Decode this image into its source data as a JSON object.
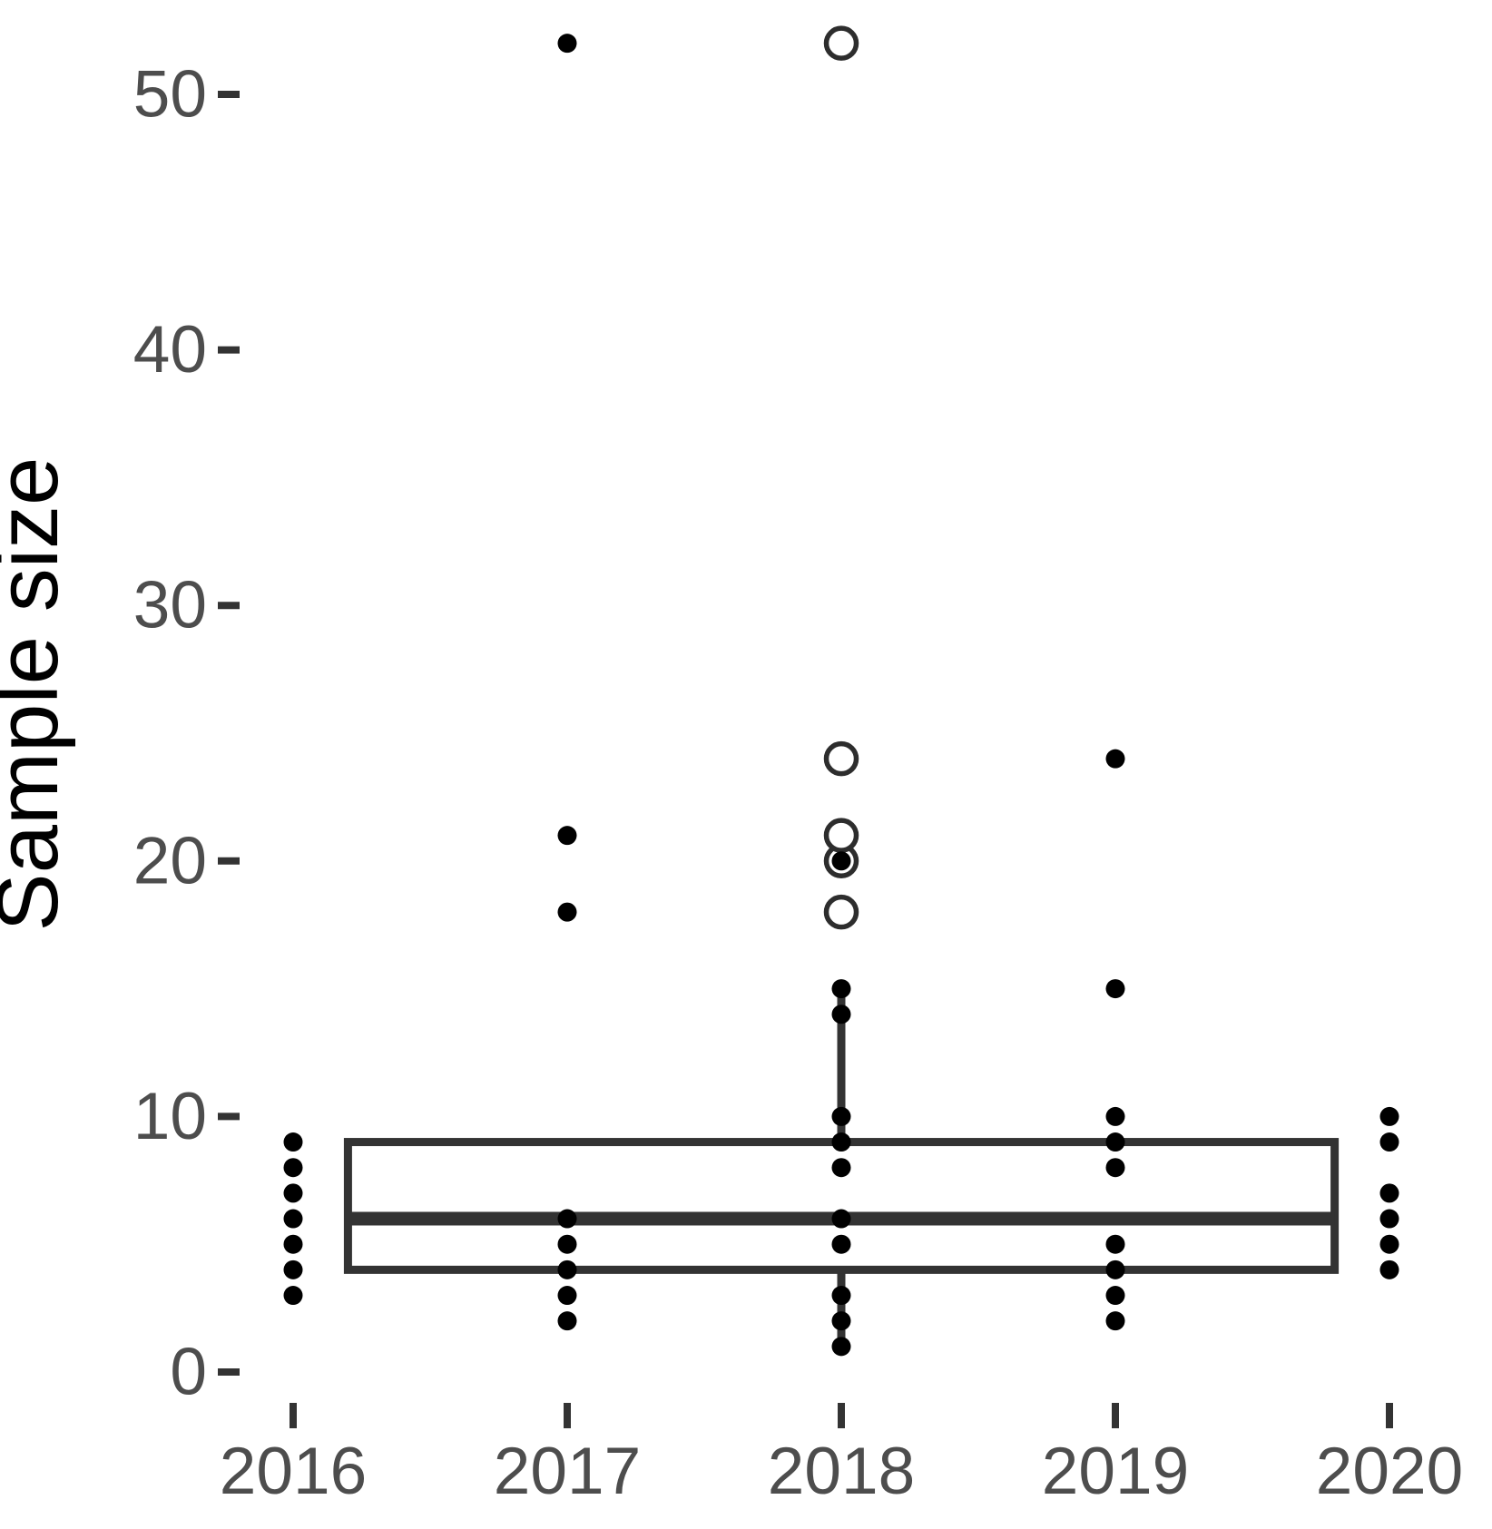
{
  "chart_data": {
    "type": "boxplot",
    "title": "",
    "xlabel": "",
    "ylabel": "Sample size",
    "x_tick_labels": [
      "2016",
      "2017",
      "2018",
      "2019",
      "2020"
    ],
    "x_years": [
      2016,
      2017,
      2018,
      2019,
      2020
    ],
    "y_ticks": [
      0,
      10,
      20,
      30,
      40,
      50
    ],
    "ylim": [
      0,
      53
    ],
    "grid": false,
    "legend_position": "none",
    "points_by_year": {
      "2016": [
        3,
        4,
        5,
        6,
        7,
        8,
        9
      ],
      "2017": [
        2,
        3,
        4,
        5,
        6,
        18,
        21,
        52
      ],
      "2018": [
        1,
        2,
        3,
        5,
        6,
        8,
        9,
        10,
        14,
        15,
        20
      ],
      "2019": [
        2,
        3,
        4,
        5,
        8,
        9,
        10,
        15,
        24
      ],
      "2020": [
        4,
        5,
        6,
        7,
        9,
        10
      ]
    },
    "box": {
      "q1": 4,
      "median": 6,
      "q3": 9,
      "whisker_low": 1,
      "whisker_high": 15,
      "x_start_year": 2016.2,
      "x_end_year": 2019.8,
      "center_year": 2018,
      "outliers": [
        18,
        20,
        21,
        24,
        52
      ]
    }
  },
  "colors": {
    "box_stroke": "#333333",
    "tick_stroke": "#333333",
    "tick_label": "#4d4d4d",
    "axis_title": "#000000",
    "point_fill": "#000000",
    "outlier_stroke": "#2d2d2d",
    "background": "#ffffff"
  }
}
